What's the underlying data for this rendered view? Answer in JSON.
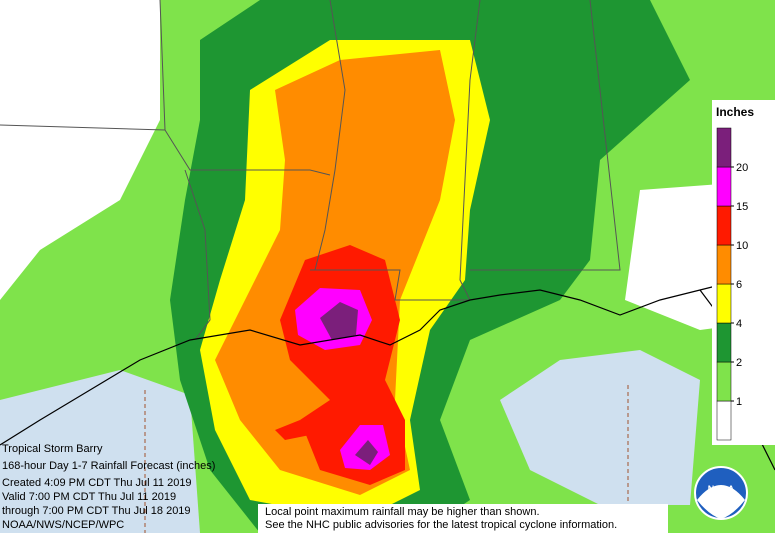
{
  "storm": "Tropical Storm Barry",
  "info": [
    "168-hour Day 1-7 Rainfall Forecast (inches)",
    "Created 4:09 PM CDT Thu Jul 11 2019",
    "Valid 7:00 PM CDT Thu Jul 11 2019",
    "through 7:00 PM CDT Thu Jul 18 2019",
    "NOAA/NWS/NCEP/WPC"
  ],
  "notes": [
    "Local point maximum rainfall may be higher than shown.",
    "See the NHC public advisories for the latest tropical cyclone information."
  ],
  "legend": {
    "title": "Inches",
    "ticks": [
      1,
      2,
      4,
      6,
      10,
      15,
      20
    ],
    "colors": [
      "#ffffff",
      "#7fe34b",
      "#1e9632",
      "#ffff00",
      "#ff8c00",
      "#ff1a00",
      "#ff00ff",
      "#7b1f7b"
    ]
  },
  "logo": "NOAA"
}
